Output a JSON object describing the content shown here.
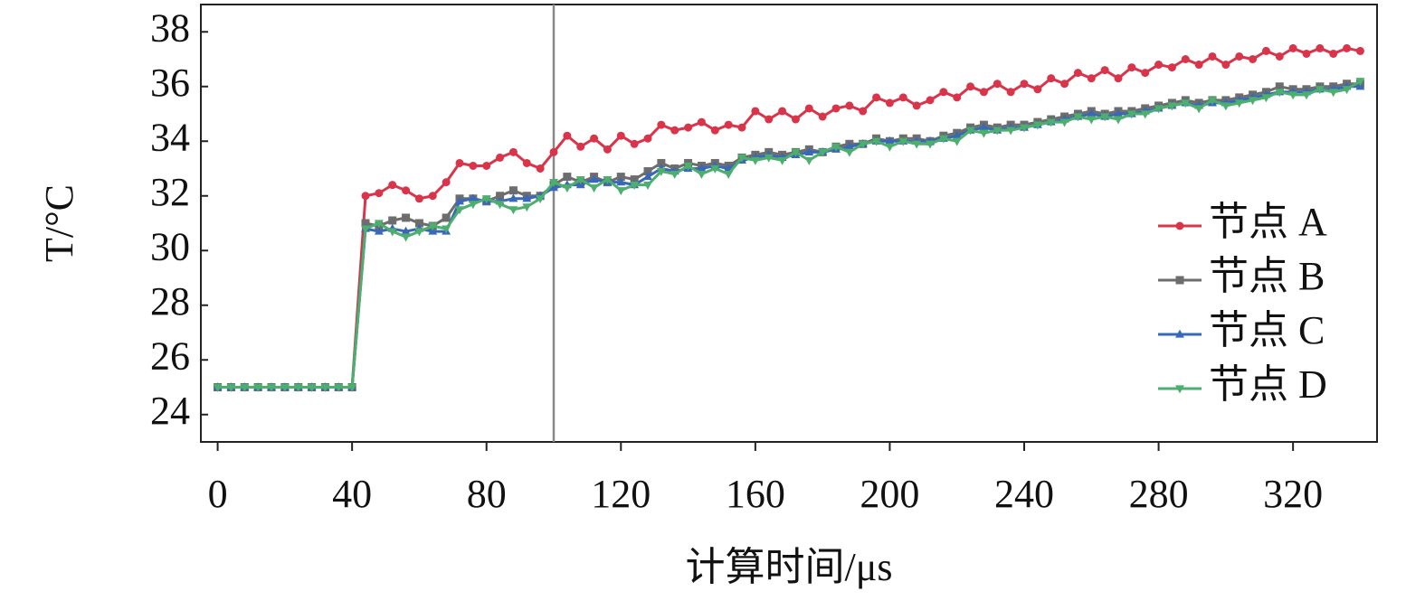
{
  "chart_data": {
    "type": "line",
    "xlabel": "计算时间/μs",
    "ylabel": "T/°C",
    "xlim": [
      -5,
      345
    ],
    "ylim": [
      23,
      39
    ],
    "xticks": [
      0,
      40,
      80,
      120,
      160,
      200,
      240,
      280,
      320
    ],
    "yticks": [
      24,
      26,
      28,
      30,
      32,
      34,
      36,
      38
    ],
    "vline": 100,
    "legend": "lower right",
    "x": [
      0,
      4,
      8,
      12,
      16,
      20,
      24,
      28,
      32,
      36,
      40,
      44,
      48,
      52,
      56,
      60,
      64,
      68,
      72,
      76,
      80,
      84,
      88,
      92,
      96,
      100,
      104,
      108,
      112,
      116,
      120,
      124,
      128,
      132,
      136,
      140,
      144,
      148,
      152,
      156,
      160,
      164,
      168,
      172,
      176,
      180,
      184,
      188,
      192,
      196,
      200,
      204,
      208,
      212,
      216,
      220,
      224,
      228,
      232,
      236,
      240,
      244,
      248,
      252,
      256,
      260,
      264,
      268,
      272,
      276,
      280,
      284,
      288,
      292,
      296,
      300,
      304,
      308,
      312,
      316,
      320,
      324,
      328,
      332,
      336,
      340
    ],
    "series": [
      {
        "name": "节点 A",
        "color": "#d9344a",
        "marker": "circle",
        "values": [
          25,
          25,
          25,
          25,
          25,
          25,
          25,
          25,
          25,
          25,
          25,
          32.0,
          32.1,
          32.4,
          32.2,
          31.9,
          32.0,
          32.5,
          33.2,
          33.1,
          33.1,
          33.4,
          33.6,
          33.2,
          33.0,
          33.6,
          34.2,
          33.8,
          34.1,
          33.7,
          34.2,
          33.9,
          34.1,
          34.6,
          34.4,
          34.5,
          34.7,
          34.4,
          34.6,
          34.5,
          35.1,
          34.8,
          35.1,
          34.8,
          35.2,
          34.9,
          35.2,
          35.3,
          35.1,
          35.6,
          35.4,
          35.6,
          35.3,
          35.5,
          35.8,
          35.6,
          36.0,
          35.8,
          36.1,
          35.8,
          36.1,
          35.9,
          36.3,
          36.1,
          36.5,
          36.3,
          36.6,
          36.3,
          36.7,
          36.5,
          36.8,
          36.7,
          37.0,
          36.8,
          37.1,
          36.8,
          37.1,
          37.0,
          37.3,
          37.1,
          37.4,
          37.2,
          37.4,
          37.2,
          37.4,
          37.3
        ]
      },
      {
        "name": "节点 B",
        "color": "#6d6d6d",
        "marker": "square",
        "values": [
          25,
          25,
          25,
          25,
          25,
          25,
          25,
          25,
          25,
          25,
          25,
          31.0,
          30.9,
          31.1,
          31.2,
          31.0,
          30.9,
          31.2,
          31.9,
          31.9,
          31.8,
          32.0,
          32.2,
          32.0,
          32.0,
          32.4,
          32.7,
          32.5,
          32.7,
          32.5,
          32.7,
          32.6,
          32.9,
          33.2,
          33.0,
          33.2,
          33.1,
          33.2,
          33.1,
          33.4,
          33.5,
          33.6,
          33.5,
          33.6,
          33.7,
          33.6,
          33.8,
          33.9,
          33.9,
          34.1,
          34.0,
          34.1,
          34.1,
          34.0,
          34.2,
          34.3,
          34.5,
          34.6,
          34.5,
          34.6,
          34.6,
          34.7,
          34.8,
          34.9,
          35.0,
          35.1,
          35.0,
          35.1,
          35.1,
          35.2,
          35.3,
          35.4,
          35.5,
          35.4,
          35.5,
          35.5,
          35.6,
          35.7,
          35.8,
          36.0,
          35.9,
          35.9,
          36.0,
          36.0,
          36.1,
          36.1
        ]
      },
      {
        "name": "节点 C",
        "color": "#3a68b8",
        "marker": "triangle-up",
        "values": [
          25,
          25,
          25,
          25,
          25,
          25,
          25,
          25,
          25,
          25,
          25,
          30.8,
          30.7,
          30.8,
          30.7,
          30.8,
          30.7,
          30.7,
          31.8,
          31.9,
          31.8,
          31.8,
          31.9,
          31.9,
          32.0,
          32.3,
          32.4,
          32.4,
          32.6,
          32.5,
          32.5,
          32.4,
          32.7,
          33.0,
          32.9,
          33.0,
          33.0,
          33.1,
          33.0,
          33.3,
          33.4,
          33.5,
          33.4,
          33.5,
          33.6,
          33.6,
          33.7,
          33.8,
          33.9,
          34.0,
          34.0,
          34.0,
          34.0,
          34.0,
          34.1,
          34.2,
          34.4,
          34.5,
          34.4,
          34.5,
          34.5,
          34.6,
          34.7,
          34.8,
          34.9,
          35.0,
          34.9,
          35.0,
          35.0,
          35.1,
          35.2,
          35.3,
          35.4,
          35.3,
          35.4,
          35.4,
          35.5,
          35.6,
          35.7,
          35.8,
          35.8,
          35.8,
          35.9,
          35.9,
          36.0,
          36.0
        ]
      },
      {
        "name": "节点 D",
        "color": "#4caf6e",
        "marker": "triangle-down",
        "values": [
          25,
          25,
          25,
          25,
          25,
          25,
          25,
          25,
          25,
          25,
          25,
          30.8,
          31.0,
          30.7,
          30.5,
          30.7,
          30.9,
          30.8,
          31.5,
          31.7,
          31.9,
          31.7,
          31.5,
          31.6,
          31.9,
          32.5,
          32.3,
          32.6,
          32.3,
          32.6,
          32.2,
          32.4,
          32.4,
          32.9,
          32.8,
          33.1,
          32.8,
          33.0,
          32.8,
          33.4,
          33.3,
          33.4,
          33.3,
          33.6,
          33.3,
          33.6,
          33.8,
          33.6,
          33.9,
          34.0,
          33.8,
          34.0,
          33.9,
          33.9,
          34.1,
          34.0,
          34.4,
          34.3,
          34.4,
          34.4,
          34.5,
          34.6,
          34.7,
          34.7,
          34.9,
          34.8,
          34.9,
          34.8,
          35.0,
          35.0,
          35.2,
          35.3,
          35.4,
          35.2,
          35.5,
          35.3,
          35.4,
          35.5,
          35.6,
          35.8,
          35.7,
          35.7,
          35.9,
          35.8,
          35.9,
          36.2
        ]
      }
    ]
  }
}
